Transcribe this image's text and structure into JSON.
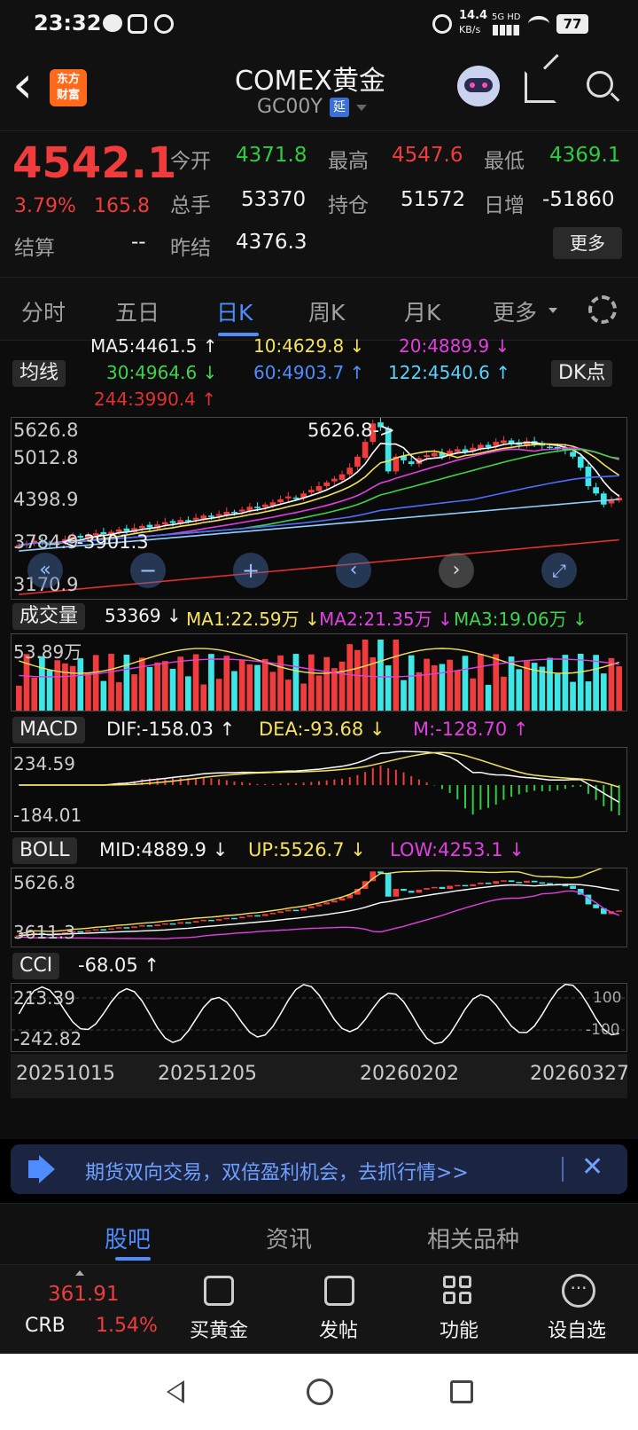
{
  "status_bar": {
    "time": "23:32",
    "speed_value": "14.4",
    "speed_unit": "KB/s",
    "network": "5G HD",
    "battery": "77"
  },
  "header": {
    "back_label": "‹",
    "logo_line1": "东方",
    "logo_line2": "财富",
    "title": "COMEX黄金",
    "code": "GC00Y",
    "delayed_badge": "延"
  },
  "quote": {
    "price": "4542.1",
    "change_pct": "3.79%",
    "change_abs": "165.8",
    "open_label": "今开",
    "open": "4371.8",
    "high_label": "最高",
    "high": "4547.6",
    "low_label": "最低",
    "low": "4369.1",
    "volume_label": "总手",
    "volume": "53370",
    "position_label": "持仓",
    "position": "51572",
    "daily_inc_label": "日增",
    "daily_inc": "-51860",
    "settle_label": "结算",
    "settle": "--",
    "prev_settle_label": "昨结",
    "prev_settle": "4376.3",
    "more_button": "更多"
  },
  "tabs": [
    {
      "label": "分时"
    },
    {
      "label": "五日"
    },
    {
      "label": "日K"
    },
    {
      "label": "周K"
    },
    {
      "label": "月K"
    },
    {
      "label": "更多"
    }
  ],
  "ma_panel": {
    "selector": "均线",
    "dk_button": "DK点",
    "ma5": "MA5:4461.5 ↑",
    "ma10": "10:4629.8 ↓",
    "ma20": "20:4889.9 ↓",
    "ma30": "30:4964.6 ↓",
    "ma60": "60:4903.7 ↑",
    "ma122": "122:4540.6 ↑",
    "ma244": "244:3990.4 ↑"
  },
  "kline": {
    "y_labels": [
      "5626.8",
      "5012.8",
      "4398.9",
      "3784.9",
      "3170.9"
    ],
    "high_marker": "5626.8->",
    "low_marker": "<-3901.3",
    "ylim": [
      3170.9,
      5626.8
    ],
    "closes": [
      3900,
      3920,
      3960,
      3930,
      3901,
      3950,
      3980,
      4010,
      4000,
      4030,
      4060,
      4050,
      4080,
      4110,
      4090,
      4130,
      4160,
      4140,
      4180,
      4210,
      4200,
      4240,
      4230,
      4270,
      4300,
      4280,
      4320,
      4350,
      4340,
      4380,
      4420,
      4400,
      4450,
      4480,
      4520,
      4560,
      4540,
      4600,
      4650,
      4700,
      4750,
      4800,
      4860,
      4950,
      5100,
      5300,
      5550,
      5500,
      4900,
      5100,
      5050,
      5000,
      5080,
      5120,
      5150,
      5100,
      5180,
      5200,
      5170,
      5220,
      5260,
      5230,
      5300,
      5320,
      5280,
      5260,
      5310,
      5270,
      5250,
      5230,
      5200,
      5180,
      5100,
      4950,
      4700,
      4600,
      4450,
      4520,
      4542
    ]
  },
  "volume_panel": {
    "selector": "成交量",
    "current": "53369 ↓",
    "ma1": "MA1:22.59万 ↓",
    "ma2": "MA2:21.35万 ↓",
    "ma3": "MA3:19.06万 ↓",
    "y_label": "53.89万"
  },
  "macd_panel": {
    "selector": "MACD",
    "dif": "DIF:-158.03 ↑",
    "dea": "DEA:-93.68 ↓",
    "m": "M:-128.70 ↑",
    "y_top": "234.59",
    "y_bottom": "-184.01"
  },
  "boll_panel": {
    "selector": "BOLL",
    "mid": "MID:4889.9 ↓",
    "up": "UP:5526.7 ↓",
    "low": "LOW:4253.1 ↓",
    "y_top": "5626.8",
    "y_bottom": "3611.3"
  },
  "cci_panel": {
    "selector": "CCI",
    "value": "-68.05 ↑",
    "y_top": "213.39",
    "y_bottom": "-242.82",
    "ref_top": "100",
    "ref_bottom": "-100"
  },
  "date_axis": [
    "20251015",
    "20251205",
    "20260202",
    "20260327"
  ],
  "banner": {
    "text": "期货双向交易，双倍盈利机会，去抓行情>>"
  },
  "bottom_tabs": [
    {
      "label": "股吧"
    },
    {
      "label": "资讯"
    },
    {
      "label": "相关品种"
    }
  ],
  "bottom_nav": {
    "crb_value": "361.91",
    "crb_label": "CRB",
    "crb_change": "1.54%",
    "items": [
      {
        "label": "买黄金"
      },
      {
        "label": "发帖"
      },
      {
        "label": "功能"
      },
      {
        "label": "设自选"
      }
    ]
  },
  "colors": {
    "up": "#f03c3c",
    "down": "#2ecc40",
    "accent": "#4f8cff"
  }
}
